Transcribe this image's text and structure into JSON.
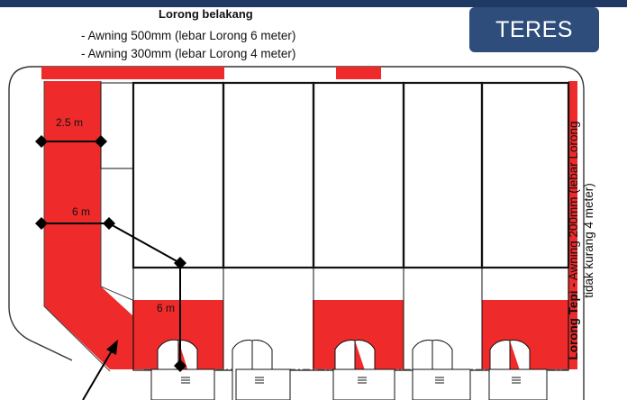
{
  "badge": {
    "label": "TERES"
  },
  "back_lane": {
    "title": "Lorong belakang",
    "line1": "- Awning 500mm (lebar Lorong 6 meter)",
    "line2": "- Awning 300mm (lebar Lorong 4 meter)"
  },
  "side_lane": {
    "title": "Lorong Tepi -",
    "line1": " Awning 200mm (lebar Lorong",
    "line2": "tidak kurang 4 meter)"
  },
  "dimensions": {
    "d1": "2.5 m",
    "d2": "6 m",
    "d3": "6 m"
  },
  "colors": {
    "awning": "#ee2a2a",
    "banner": "#1f3864",
    "badge": "#2e4d7b",
    "wall": "#111111"
  },
  "icons": {
    "gate": "grille-icon",
    "arrow": "pointer-arrow-icon",
    "door": "door-swing-icon"
  }
}
